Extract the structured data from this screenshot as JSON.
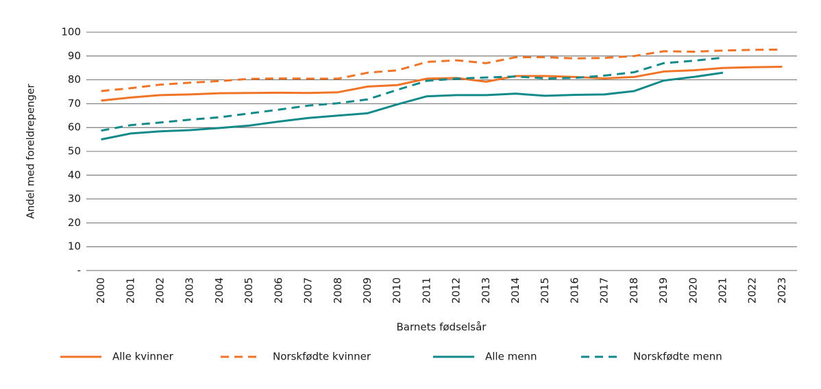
{
  "chart_data": {
    "type": "line",
    "y_label": "Andel med foreldrepenger",
    "x_label": "Barnets fødselsår",
    "categories": [
      "2000",
      "2001",
      "2002",
      "2003",
      "2004",
      "2005",
      "2006",
      "2007",
      "2008",
      "2009",
      "2010",
      "2011",
      "2012",
      "2013",
      "2014",
      "2015",
      "2016",
      "2017",
      "2018",
      "2019",
      "2020",
      "2021",
      "2022",
      "2023"
    ],
    "series": [
      {
        "name": "Alle kvinner",
        "color": "#f07427",
        "dash": false,
        "values": [
          71.3,
          72.6,
          73.6,
          73.9,
          74.4,
          74.5,
          74.6,
          74.5,
          74.8,
          77.2,
          77.8,
          80.5,
          80.8,
          79.2,
          81.6,
          81.6,
          81.2,
          80.6,
          81.2,
          83.5,
          84.0,
          85.0,
          85.3,
          85.5
        ]
      },
      {
        "name": "Norskfødte kvinner",
        "color": "#f07427",
        "dash": true,
        "values": [
          75.3,
          76.5,
          78.0,
          78.8,
          79.5,
          80.4,
          80.6,
          80.5,
          80.5,
          83.0,
          84.0,
          87.5,
          88.2,
          87.0,
          89.5,
          89.5,
          89.0,
          89.2,
          90.0,
          92.0,
          91.8,
          92.3,
          92.6,
          92.7
        ]
      },
      {
        "name": "Alle menn",
        "color": "#138a8a",
        "dash": false,
        "values": [
          55.0,
          57.5,
          58.4,
          58.9,
          59.8,
          60.8,
          62.5,
          64.0,
          65.0,
          66.0,
          69.7,
          73.1,
          73.6,
          73.6,
          74.2,
          73.3,
          73.7,
          73.9,
          75.3,
          79.7,
          81.2,
          83.0,
          null,
          null
        ]
      },
      {
        "name": "Norskfødte menn",
        "color": "#138a8a",
        "dash": true,
        "values": [
          58.7,
          61.0,
          62.1,
          63.3,
          64.3,
          65.9,
          67.5,
          69.2,
          70.2,
          71.8,
          75.8,
          79.6,
          80.5,
          81.0,
          81.4,
          80.6,
          80.8,
          81.8,
          83.2,
          87.0,
          88.0,
          89.3,
          null,
          null
        ]
      }
    ],
    "ylim": [
      0,
      100
    ],
    "yticks": [
      {
        "value": 0,
        "label": "-"
      },
      10,
      20,
      30,
      40,
      50,
      60,
      70,
      80,
      90,
      100
    ],
    "grid": true,
    "legend": "bottom"
  }
}
